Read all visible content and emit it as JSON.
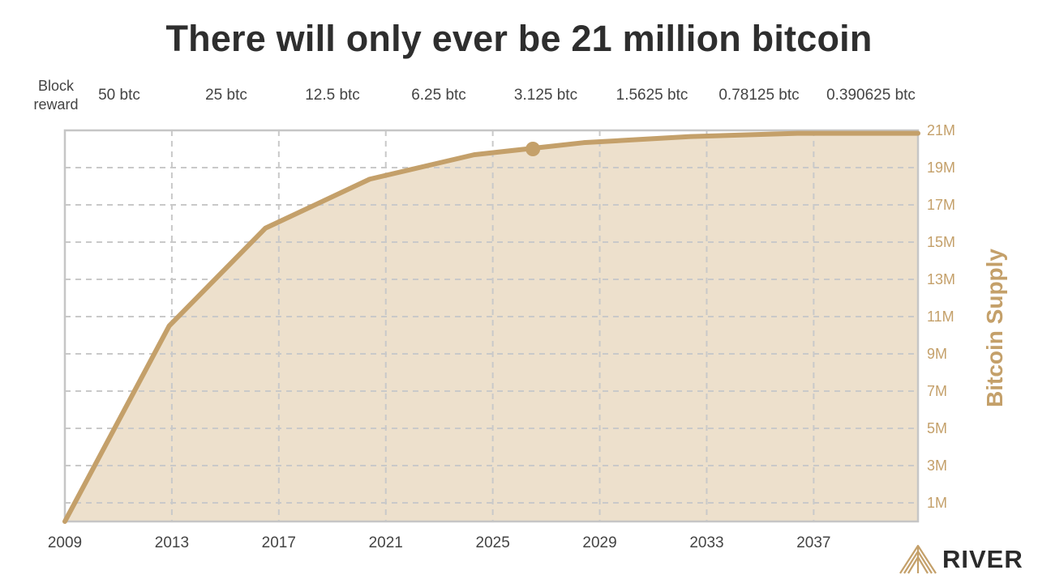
{
  "title": "There will only ever be 21 million bitcoin",
  "block_reward": {
    "label_line1": "Block",
    "label_line2": "reward",
    "values": [
      "50 btc",
      "25 btc",
      "12.5 btc",
      "6.25 btc",
      "3.125 btc",
      "1.5625 btc",
      "0.78125 btc",
      "0.390625 btc"
    ]
  },
  "brand": {
    "name": "RIVER",
    "icon": "river-mountain-logo"
  },
  "colors": {
    "line": "#c4a06a",
    "fill": "#ede0cc",
    "axis_label": "#c4a06a",
    "grid": "#c9c9c9",
    "frame": "#c6c6c6",
    "tick_text": "#444444"
  },
  "chart_data": {
    "type": "area",
    "title": "There will only ever be 21 million bitcoin",
    "ylabel": "Bitcoin Supply",
    "xlabel": "",
    "x_ticks": [
      "2009",
      "2013",
      "2017",
      "2021",
      "2025",
      "2029",
      "2033",
      "2037"
    ],
    "y_ticks": [
      "1M",
      "3M",
      "5M",
      "7M",
      "9M",
      "11M",
      "13M",
      "15M",
      "17M",
      "19M",
      "21M"
    ],
    "xlim": [
      2009,
      2040.9
    ],
    "ylim": [
      0,
      21
    ],
    "y_unit": "million BTC",
    "grid": true,
    "series": [
      {
        "x": [
          2009,
          2012.9,
          2016.5,
          2020.4,
          2024.3,
          2028.4,
          2032.4,
          2036.4,
          2040.9
        ],
        "y": [
          0,
          10.5,
          15.75,
          18.38,
          19.69,
          20.34,
          20.67,
          20.84,
          20.84
        ]
      }
    ],
    "marker": {
      "x": 2026.5,
      "y": 20.0
    }
  }
}
